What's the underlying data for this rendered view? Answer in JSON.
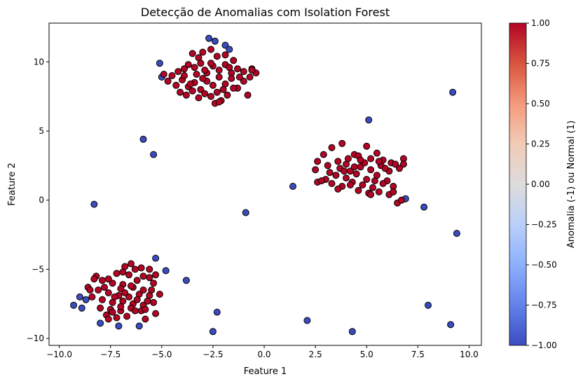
{
  "chart_data": {
    "type": "scatter",
    "title": "Detecção de Anomalias com Isolation Forest",
    "xlabel": "Feature 1",
    "ylabel": "Feature 2",
    "xlim": [
      -10.5,
      10.6
    ],
    "ylim": [
      -10.5,
      12.8
    ],
    "xticks": [
      -10.0,
      -7.5,
      -5.0,
      -2.5,
      0.0,
      2.5,
      5.0,
      7.5,
      10.0
    ],
    "xtick_labels": [
      "−10.0",
      "−7.5",
      "−5.0",
      "−2.5",
      "0.0",
      "2.5",
      "5.0",
      "7.5",
      "10.0"
    ],
    "yticks": [
      -10,
      -5,
      0,
      5,
      10
    ],
    "ytick_labels": [
      "−10",
      "−5",
      "0",
      "5",
      "10"
    ],
    "grid": false,
    "colormap": "coolwarm",
    "colors": {
      "normal": "#b40426",
      "anomaly": "#3b4cc0",
      "edge": "#000000"
    },
    "colorbar": {
      "label": "Anomalia (-1) ou Normal (1)",
      "range": [
        -1.0,
        1.0
      ],
      "ticks": [
        1.0,
        0.75,
        0.5,
        0.25,
        0.0,
        -0.25,
        -0.5,
        -0.75,
        -1.0
      ],
      "tick_labels": [
        "1.00",
        "0.75",
        "0.50",
        "0.25",
        "0.00",
        "−0.25",
        "−0.50",
        "−0.75",
        "−1.00"
      ],
      "stops": [
        "#b40426",
        "#d8553e",
        "#f49a7b",
        "#f2cbb7",
        "#dddcdc",
        "#b9d0f9",
        "#8db0fe",
        "#6282ea",
        "#3b4cc0"
      ]
    },
    "series": [
      {
        "label_value": -1,
        "points": [
          [
            -2.7,
            11.7
          ],
          [
            -2.4,
            11.5
          ],
          [
            -1.9,
            11.2
          ],
          [
            -1.7,
            10.9
          ],
          [
            -5.1,
            9.9
          ],
          [
            -5.0,
            8.9
          ],
          [
            -5.9,
            4.4
          ],
          [
            -5.4,
            3.3
          ],
          [
            -8.3,
            -0.3
          ],
          [
            -0.9,
            -0.9
          ],
          [
            1.4,
            1.0
          ],
          [
            5.1,
            5.8
          ],
          [
            9.2,
            7.8
          ],
          [
            6.9,
            0.1
          ],
          [
            7.8,
            -0.5
          ],
          [
            9.4,
            -2.4
          ],
          [
            -5.3,
            -4.2
          ],
          [
            -4.8,
            -5.1
          ],
          [
            -3.8,
            -5.8
          ],
          [
            -9.3,
            -7.6
          ],
          [
            -9.0,
            -7.0
          ],
          [
            -8.9,
            -7.8
          ],
          [
            -8.7,
            -7.2
          ],
          [
            -8.0,
            -8.9
          ],
          [
            -7.1,
            -9.1
          ],
          [
            -6.1,
            -9.1
          ],
          [
            -2.3,
            -8.1
          ],
          [
            -2.5,
            -9.5
          ],
          [
            2.1,
            -8.7
          ],
          [
            4.3,
            -9.5
          ],
          [
            8.0,
            -7.6
          ],
          [
            9.1,
            -9.0
          ]
        ]
      },
      {
        "label_value": 1,
        "points": [
          [
            -3.5,
            10.6
          ],
          [
            -3.2,
            10.3
          ],
          [
            -3.0,
            10.7
          ],
          [
            -2.6,
            10.9
          ],
          [
            -2.3,
            10.4
          ],
          [
            -1.9,
            10.5
          ],
          [
            -1.5,
            10.1
          ],
          [
            -4.5,
            9.0
          ],
          [
            -4.2,
            9.3
          ],
          [
            -3.9,
            9.5
          ],
          [
            -3.7,
            9.8
          ],
          [
            -3.4,
            9.6
          ],
          [
            -3.1,
            9.9
          ],
          [
            -2.8,
            9.2
          ],
          [
            -2.5,
            9.7
          ],
          [
            -2.2,
            9.4
          ],
          [
            -1.9,
            9.8
          ],
          [
            -1.6,
            9.2
          ],
          [
            -1.3,
            9.5
          ],
          [
            -1.0,
            9.3
          ],
          [
            -0.6,
            9.5
          ],
          [
            -0.4,
            9.2
          ],
          [
            -4.7,
            8.6
          ],
          [
            -4.3,
            8.3
          ],
          [
            -4.0,
            8.7
          ],
          [
            -3.7,
            8.2
          ],
          [
            -3.4,
            8.5
          ],
          [
            -3.1,
            8.0
          ],
          [
            -2.8,
            8.6
          ],
          [
            -2.5,
            8.3
          ],
          [
            -2.2,
            8.9
          ],
          [
            -1.9,
            8.4
          ],
          [
            -1.6,
            8.8
          ],
          [
            -1.3,
            8.1
          ],
          [
            -1.0,
            8.6
          ],
          [
            -0.7,
            8.9
          ],
          [
            -4.1,
            7.8
          ],
          [
            -3.8,
            7.6
          ],
          [
            -3.5,
            7.9
          ],
          [
            -3.2,
            7.4
          ],
          [
            -2.9,
            7.7
          ],
          [
            -2.6,
            7.5
          ],
          [
            -2.3,
            7.8
          ],
          [
            -2.1,
            7.2
          ],
          [
            -1.8,
            7.6
          ],
          [
            -1.5,
            8.1
          ],
          [
            -0.8,
            7.6
          ],
          [
            -2.4,
            7.0
          ],
          [
            -2.2,
            7.1
          ],
          [
            -3.0,
            8.8
          ],
          [
            -3.9,
            9.0
          ],
          [
            -2.0,
            8.0
          ],
          [
            -1.2,
            8.9
          ],
          [
            -4.9,
            9.1
          ],
          [
            -3.3,
            9.1
          ],
          [
            -2.6,
            9.9
          ],
          [
            -1.7,
            9.6
          ],
          [
            -0.6,
            9.4
          ],
          [
            -3.6,
            8.4
          ],
          [
            -2.9,
            9.4
          ],
          [
            3.8,
            4.1
          ],
          [
            3.3,
            3.8
          ],
          [
            5.0,
            3.9
          ],
          [
            2.9,
            3.3
          ],
          [
            4.4,
            3.3
          ],
          [
            5.5,
            3.4
          ],
          [
            6.8,
            3.0
          ],
          [
            2.6,
            2.8
          ],
          [
            3.1,
            2.5
          ],
          [
            3.6,
            2.8
          ],
          [
            4.1,
            3.0
          ],
          [
            4.6,
            3.2
          ],
          [
            5.2,
            3.0
          ],
          [
            5.8,
            2.9
          ],
          [
            6.2,
            2.7
          ],
          [
            6.8,
            2.6
          ],
          [
            2.5,
            2.2
          ],
          [
            3.2,
            2.0
          ],
          [
            3.7,
            2.3
          ],
          [
            4.2,
            2.1
          ],
          [
            4.7,
            2.4
          ],
          [
            5.2,
            2.2
          ],
          [
            5.7,
            2.5
          ],
          [
            6.1,
            2.1
          ],
          [
            6.6,
            2.3
          ],
          [
            3.0,
            1.5
          ],
          [
            3.5,
            1.8
          ],
          [
            4.0,
            1.6
          ],
          [
            4.5,
            1.9
          ],
          [
            5.0,
            1.5
          ],
          [
            5.5,
            1.8
          ],
          [
            6.0,
            1.4
          ],
          [
            2.6,
            1.3
          ],
          [
            3.3,
            1.2
          ],
          [
            3.8,
            1.0
          ],
          [
            4.3,
            1.3
          ],
          [
            4.8,
            1.1
          ],
          [
            5.3,
            0.9
          ],
          [
            5.8,
            1.2
          ],
          [
            6.3,
            1.0
          ],
          [
            3.6,
            0.8
          ],
          [
            4.6,
            0.7
          ],
          [
            5.1,
            0.5
          ],
          [
            5.6,
            0.6
          ],
          [
            6.1,
            0.4
          ],
          [
            6.5,
            -0.2
          ],
          [
            5.2,
            0.4
          ],
          [
            4.0,
            2.6
          ],
          [
            4.9,
            2.7
          ],
          [
            5.4,
            1.4
          ],
          [
            4.4,
            2.4
          ],
          [
            6.3,
            0.6
          ],
          [
            2.8,
            1.4
          ],
          [
            5.9,
            2.3
          ],
          [
            6.7,
            0.0
          ],
          [
            3.9,
            2.1
          ],
          [
            4.2,
            1.1
          ],
          [
            5.6,
            2.8
          ],
          [
            6.4,
            2.6
          ],
          [
            4.7,
            2.9
          ],
          [
            -6.5,
            -4.6
          ],
          [
            -6.8,
            -4.8
          ],
          [
            -6.3,
            -5.0
          ],
          [
            -6.0,
            -4.9
          ],
          [
            -7.2,
            -5.3
          ],
          [
            -6.6,
            -5.4
          ],
          [
            -5.9,
            -5.5
          ],
          [
            -5.6,
            -5.6
          ],
          [
            -8.2,
            -5.5
          ],
          [
            -7.9,
            -5.8
          ],
          [
            -7.4,
            -6.0
          ],
          [
            -6.9,
            -6.1
          ],
          [
            -6.4,
            -6.3
          ],
          [
            -5.9,
            -6.5
          ],
          [
            -5.4,
            -6.0
          ],
          [
            -8.6,
            -6.3
          ],
          [
            -8.1,
            -6.5
          ],
          [
            -7.6,
            -6.7
          ],
          [
            -7.1,
            -6.9
          ],
          [
            -6.6,
            -7.0
          ],
          [
            -6.1,
            -6.8
          ],
          [
            -5.6,
            -6.9
          ],
          [
            -5.1,
            -6.8
          ],
          [
            -8.4,
            -7.0
          ],
          [
            -7.9,
            -7.2
          ],
          [
            -7.4,
            -7.4
          ],
          [
            -6.9,
            -7.3
          ],
          [
            -6.4,
            -7.5
          ],
          [
            -5.9,
            -7.6
          ],
          [
            -5.4,
            -7.4
          ],
          [
            -8.0,
            -7.8
          ],
          [
            -7.5,
            -7.9
          ],
          [
            -7.0,
            -8.0
          ],
          [
            -6.5,
            -7.8
          ],
          [
            -6.0,
            -8.0
          ],
          [
            -7.7,
            -8.3
          ],
          [
            -7.2,
            -8.5
          ],
          [
            -6.7,
            -8.4
          ],
          [
            -7.6,
            -8.6
          ],
          [
            -5.3,
            -8.2
          ],
          [
            -5.8,
            -8.6
          ],
          [
            -8.5,
            -6.5
          ],
          [
            -8.3,
            -5.7
          ],
          [
            -6.2,
            -5.8
          ],
          [
            -5.3,
            -5.4
          ],
          [
            -7.0,
            -6.4
          ],
          [
            -6.8,
            -6.7
          ],
          [
            -7.3,
            -7.0
          ],
          [
            -6.2,
            -7.2
          ],
          [
            -5.7,
            -7.3
          ],
          [
            -7.8,
            -6.3
          ],
          [
            -6.5,
            -6.2
          ],
          [
            -5.5,
            -6.5
          ],
          [
            -7.0,
            -7.7
          ],
          [
            -6.3,
            -8.0
          ],
          [
            -7.4,
            -8.1
          ],
          [
            -5.6,
            -5.0
          ],
          [
            -6.9,
            -5.2
          ],
          [
            -7.6,
            -5.7
          ],
          [
            -5.8,
            -7.9
          ]
        ]
      }
    ]
  }
}
